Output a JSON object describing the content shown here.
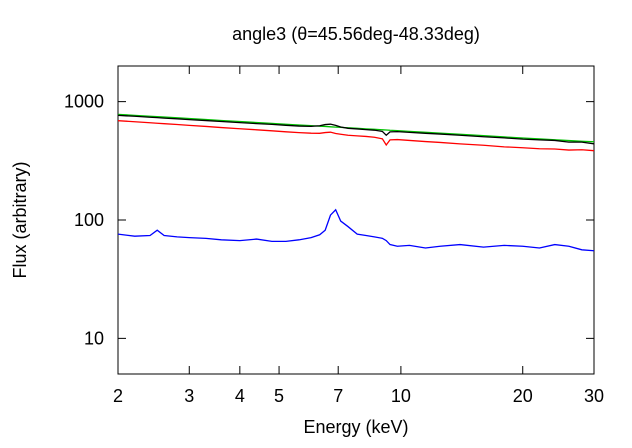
{
  "chart_data": {
    "type": "line",
    "title": "angle3 (θ=45.56deg-48.33deg)",
    "x_label": "Energy (keV)",
    "y_label": "Flux (arbitrary)",
    "log_x": true,
    "log_y": true,
    "grid": false,
    "xlim": [
      2,
      30
    ],
    "ylim": [
      5,
      2000
    ],
    "xticks": [
      2,
      3,
      4,
      5,
      7,
      10,
      20,
      30
    ],
    "yticks": [
      10,
      100,
      1000
    ],
    "x": [
      2,
      2.2,
      2.4,
      2.5,
      2.6,
      2.8,
      3,
      3.3,
      3.6,
      4,
      4.4,
      4.8,
      5.2,
      5.6,
      6,
      6.3,
      6.5,
      6.7,
      6.9,
      7.1,
      7.4,
      7.8,
      8.2,
      8.6,
      9,
      9.2,
      9.4,
      9.8,
      10.5,
      11.5,
      12.5,
      14,
      16,
      18,
      20,
      22,
      24,
      26,
      28,
      30
    ],
    "series": [
      {
        "color": "#00c000",
        "values": [
          780,
          766,
          753,
          747,
          741,
          731,
          720,
          706,
          693,
          679,
          666,
          655,
          644,
          635,
          627,
          620,
          617,
          613,
          609,
          606,
          601,
          595,
          589,
          584,
          578,
          576,
          573,
          569,
          561,
          551,
          542,
          530,
          516,
          503,
          493,
          484,
          476,
          469,
          463,
          458
        ]
      },
      {
        "color": "#000000",
        "values": [
          765,
          752,
          738,
          733,
          726,
          716,
          705,
          692,
          679,
          665,
          652,
          642,
          631,
          622,
          618,
          625,
          640,
          645,
          630,
          610,
          595,
          588,
          580,
          574,
          560,
          520,
          555,
          558,
          550,
          540,
          532,
          520,
          505,
          494,
          482,
          475,
          470,
          455,
          455,
          440
        ]
      },
      {
        "color": "#ff0000",
        "values": [
          690,
          676,
          663,
          657,
          651,
          641,
          630,
          617,
          604,
          590,
          578,
          567,
          556,
          547,
          541,
          540,
          548,
          552,
          538,
          530,
          520,
          514,
          508,
          500,
          485,
          430,
          475,
          478,
          470,
          460,
          452,
          440,
          428,
          415,
          408,
          400,
          398,
          390,
          392,
          385
        ]
      },
      {
        "color": "#0000ff",
        "values": [
          76,
          73,
          74,
          82,
          74,
          72,
          71,
          70,
          68,
          67,
          69,
          66,
          66,
          68,
          71,
          75,
          82,
          110,
          122,
          98,
          88,
          76,
          74,
          72,
          70,
          67,
          62,
          60,
          61,
          58,
          60,
          62,
          59,
          61,
          60,
          58,
          62,
          60,
          56,
          55
        ]
      }
    ]
  }
}
